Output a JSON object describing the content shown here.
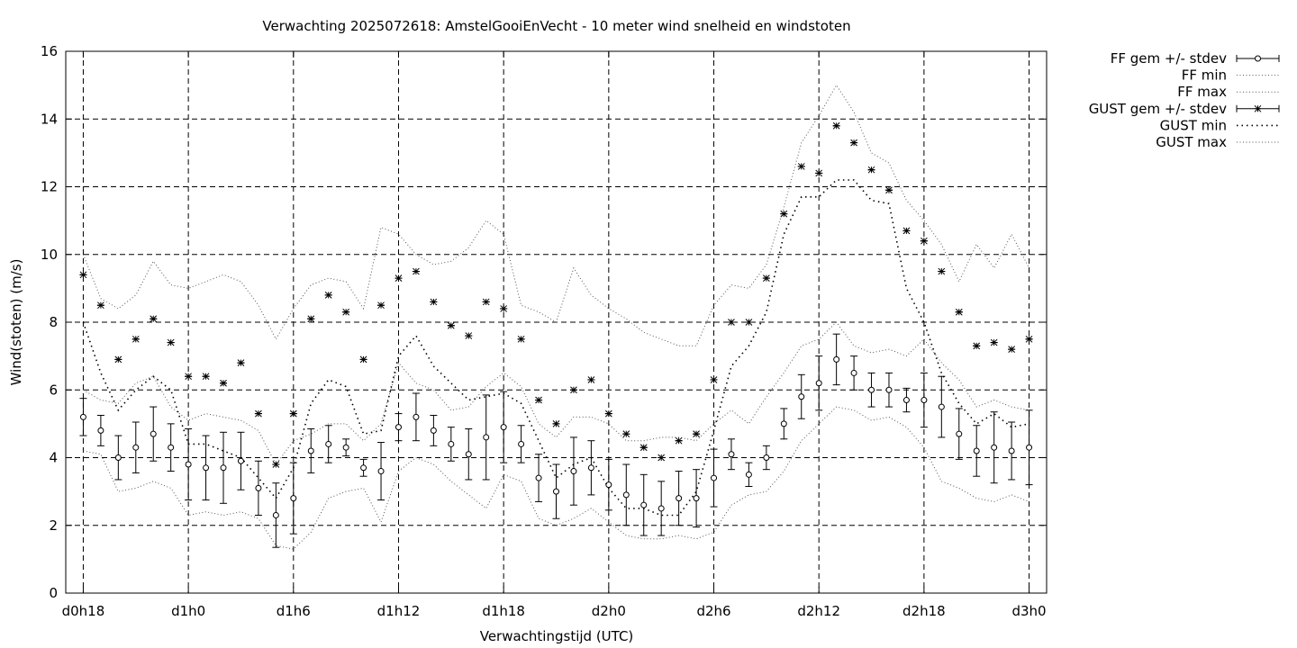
{
  "chart_data": {
    "type": "line",
    "title": "Verwachting 2025072618: AmstelGooiEnVecht - 10 meter wind snelheid en windstoten",
    "xlabel": "Verwachtingstijd (UTC)",
    "ylabel": "Wind(stoten) (m/s)",
    "ylim": [
      0,
      16
    ],
    "yticks": [
      0,
      2,
      4,
      6,
      8,
      10,
      12,
      14,
      16
    ],
    "xlim_hours": [
      17,
      73
    ],
    "xticks": [
      {
        "hour": 18,
        "label": "d0h18"
      },
      {
        "hour": 24,
        "label": "d1h0"
      },
      {
        "hour": 30,
        "label": "d1h6"
      },
      {
        "hour": 36,
        "label": "d1h12"
      },
      {
        "hour": 42,
        "label": "d1h18"
      },
      {
        "hour": 48,
        "label": "d2h0"
      },
      {
        "hour": 54,
        "label": "d2h6"
      },
      {
        "hour": 60,
        "label": "d2h12"
      },
      {
        "hour": 66,
        "label": "d2h18"
      },
      {
        "hour": 72,
        "label": "d3h0"
      }
    ],
    "grid": true,
    "legend_position": "outside-right",
    "x_hours": [
      18,
      19,
      20,
      21,
      22,
      23,
      24,
      25,
      26,
      27,
      28,
      29,
      30,
      31,
      32,
      33,
      34,
      35,
      36,
      37,
      38,
      39,
      40,
      41,
      42,
      43,
      44,
      45,
      46,
      47,
      48,
      49,
      50,
      51,
      52,
      53,
      54,
      55,
      56,
      57,
      58,
      59,
      60,
      61,
      62,
      63,
      64,
      65,
      66,
      67,
      68,
      69,
      70,
      71,
      72
    ],
    "series": [
      {
        "name": "FF gem +/- stdev",
        "marker": "circle",
        "values": [
          5.2,
          4.8,
          4.0,
          4.3,
          4.7,
          4.3,
          3.8,
          3.7,
          3.7,
          3.9,
          3.1,
          2.3,
          2.8,
          4.2,
          4.4,
          4.3,
          3.7,
          3.6,
          4.9,
          5.2,
          4.8,
          4.4,
          4.1,
          4.6,
          4.9,
          4.4,
          3.4,
          3.0,
          3.6,
          3.7,
          3.2,
          2.9,
          2.6,
          2.5,
          2.8,
          2.8,
          3.4,
          4.1,
          3.5,
          4.0,
          5.0,
          5.8,
          6.2,
          6.9,
          6.5,
          6.0,
          6.0,
          5.7,
          5.7,
          5.5,
          4.7,
          4.2,
          4.3,
          4.2,
          4.3
        ],
        "stdev": [
          0.55,
          0.45,
          0.65,
          0.75,
          0.8,
          0.7,
          1.05,
          0.95,
          1.05,
          0.85,
          0.8,
          0.95,
          1.05,
          0.65,
          0.55,
          0.25,
          0.25,
          0.85,
          0.4,
          0.7,
          0.45,
          0.5,
          0.75,
          1.25,
          1.05,
          0.55,
          0.7,
          0.8,
          1.0,
          0.8,
          0.75,
          0.9,
          0.9,
          0.8,
          0.8,
          0.85,
          0.85,
          0.45,
          0.35,
          0.35,
          0.45,
          0.65,
          0.8,
          0.75,
          0.5,
          0.5,
          0.5,
          0.35,
          0.8,
          0.9,
          0.75,
          0.75,
          1.05,
          0.85,
          1.1
        ]
      },
      {
        "name": "FF min",
        "style": "dotted",
        "values": [
          4.2,
          4.1,
          3.0,
          3.1,
          3.3,
          3.1,
          2.3,
          2.4,
          2.3,
          2.4,
          2.2,
          1.4,
          1.3,
          1.8,
          2.8,
          3.0,
          3.1,
          2.1,
          3.6,
          4.0,
          3.8,
          3.3,
          2.9,
          2.5,
          3.5,
          3.3,
          2.2,
          2.0,
          2.2,
          2.5,
          2.1,
          1.7,
          1.6,
          1.6,
          1.7,
          1.6,
          1.8,
          2.6,
          2.9,
          3.0,
          3.6,
          4.5,
          5.0,
          5.5,
          5.4,
          5.1,
          5.2,
          4.9,
          4.3,
          3.3,
          3.1,
          2.8,
          2.7,
          2.9,
          2.7
        ]
      },
      {
        "name": "FF max",
        "style": "dotted",
        "values": [
          6.0,
          5.7,
          5.6,
          6.2,
          6.4,
          5.5,
          5.1,
          5.3,
          5.2,
          5.1,
          4.8,
          3.8,
          4.5,
          4.7,
          5.0,
          5.0,
          4.5,
          5.0,
          6.8,
          6.2,
          6.0,
          5.4,
          5.5,
          6.1,
          6.5,
          6.1,
          5.0,
          4.6,
          5.2,
          5.2,
          5.0,
          4.5,
          4.5,
          4.6,
          4.6,
          4.5,
          5.0,
          5.4,
          5.0,
          5.8,
          6.5,
          7.3,
          7.5,
          8.0,
          7.3,
          7.1,
          7.2,
          7.0,
          7.5,
          6.8,
          6.3,
          5.5,
          5.7,
          5.5,
          5.4
        ]
      },
      {
        "name": "GUST gem +/- stdev",
        "marker": "star",
        "values": [
          9.4,
          8.5,
          6.9,
          7.5,
          8.1,
          7.4,
          6.4,
          6.4,
          6.2,
          6.8,
          5.3,
          3.8,
          5.3,
          8.1,
          8.8,
          8.3,
          6.9,
          8.5,
          9.3,
          9.5,
          8.6,
          7.9,
          7.6,
          8.6,
          8.4,
          7.5,
          5.7,
          5.0,
          6.0,
          6.3,
          5.3,
          4.7,
          4.3,
          4.0,
          4.5,
          4.7,
          6.3,
          8.0,
          8.0,
          9.3,
          11.2,
          12.6,
          12.4,
          13.8,
          13.3,
          12.5,
          11.9,
          10.7,
          10.4,
          9.5,
          8.3,
          7.3,
          7.4,
          7.2,
          7.5
        ]
      },
      {
        "name": "GUST min",
        "style": "dotted",
        "values": [
          8.0,
          6.5,
          5.4,
          6.0,
          6.4,
          6.0,
          4.4,
          4.4,
          4.2,
          4.0,
          3.4,
          2.8,
          3.7,
          5.6,
          6.3,
          6.1,
          4.7,
          4.8,
          7.0,
          7.6,
          6.7,
          6.2,
          5.7,
          5.8,
          5.9,
          5.6,
          4.5,
          3.4,
          3.8,
          4.0,
          3.1,
          2.5,
          2.5,
          2.3,
          2.3,
          3.0,
          4.8,
          6.7,
          7.3,
          8.3,
          10.6,
          11.7,
          11.7,
          12.2,
          12.2,
          11.6,
          11.5,
          9.0,
          8.0,
          6.5,
          5.6,
          5.0,
          5.3,
          4.9,
          5.0
        ]
      },
      {
        "name": "GUST max",
        "style": "dotted",
        "values": [
          10.0,
          8.7,
          8.4,
          8.8,
          9.8,
          9.1,
          9.0,
          9.2,
          9.4,
          9.2,
          8.5,
          7.5,
          8.4,
          9.1,
          9.3,
          9.2,
          8.4,
          10.8,
          10.6,
          10.0,
          9.7,
          9.8,
          10.2,
          11.0,
          10.6,
          8.5,
          8.3,
          8.0,
          9.6,
          8.8,
          8.4,
          8.1,
          7.7,
          7.5,
          7.3,
          7.3,
          8.5,
          9.1,
          9.0,
          9.7,
          11.4,
          13.3,
          14.1,
          15.0,
          14.2,
          13.0,
          12.7,
          11.6,
          11.0,
          10.3,
          9.2,
          10.3,
          9.6,
          10.6,
          9.6
        ]
      }
    ]
  }
}
